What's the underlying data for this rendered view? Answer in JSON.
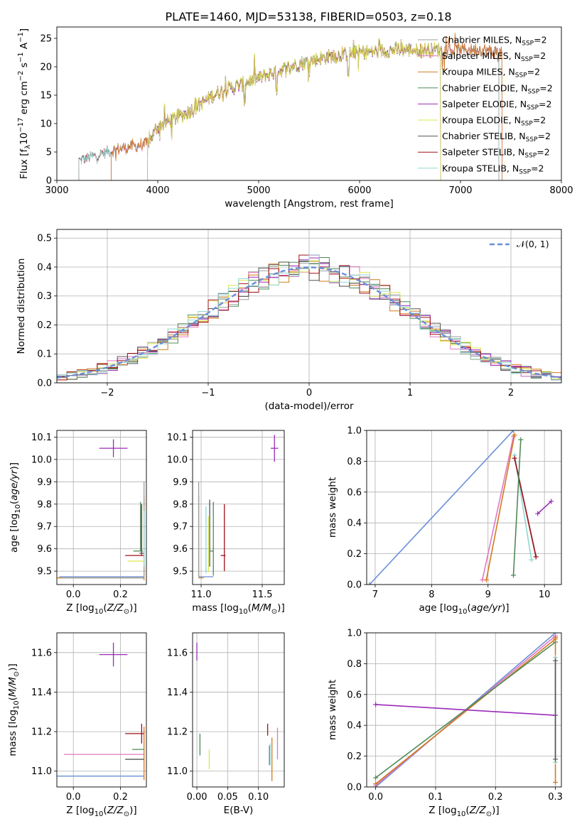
{
  "figure": {
    "title": "PLATE=1460, MJD=53138, FIBERID=0503, z=0.18"
  },
  "colors": {
    "Chabrier MILES": "#9e9e9e",
    "Salpeter MILES": "#e377c2",
    "Kroupa MILES": "#d17a1f",
    "Chabrier ELODIE": "#4f8a58",
    "Salpeter ELODIE": "#9a2bb8",
    "Kroupa ELODIE": "#dce652",
    "Chabrier STELIB": "#555555",
    "Salpeter STELIB": "#a0121d",
    "Kroupa STELIB": "#8fd8d3",
    "normal": "#6a8fd8"
  },
  "chart_data": [
    {
      "id": "spectrum",
      "type": "line",
      "xlabel": "wavelength [Angstrom, rest frame]",
      "ylabel": "Flux [f_λ10^-17 erg cm^-2 s^-1 A^-1]",
      "xlim": [
        3000,
        8000
      ],
      "ylim": [
        0,
        27
      ],
      "xticks": [
        3000,
        4000,
        5000,
        6000,
        7000,
        8000
      ],
      "yticks": [
        0,
        5,
        10,
        15,
        20,
        25
      ],
      "grid": false,
      "legend": "top-right",
      "series": [
        {
          "name": "Chabrier MILES, N_SSP=2",
          "label": "Chabrier MILES, N",
          "sub": "SSP",
          "suffix": "=2",
          "x0": 3540,
          "x1": 7410
        },
        {
          "name": "Salpeter MILES, N_SSP=2",
          "label": "Salpeter MILES, N",
          "sub": "SSP",
          "suffix": "=2",
          "x0": 3540,
          "x1": 7410
        },
        {
          "name": "Kroupa MILES, N_SSP=2",
          "label": "Kroupa MILES, N",
          "sub": "SSP",
          "suffix": "=2",
          "x0": 3540,
          "x1": 7410
        },
        {
          "name": "Chabrier ELODIE, N_SSP=2",
          "label": "Chabrier ELODIE, N",
          "sub": "SSP",
          "suffix": "=2",
          "x0": 3900,
          "x1": 6800
        },
        {
          "name": "Salpeter ELODIE, N_SSP=2",
          "label": "Salpeter ELODIE, N",
          "sub": "SSP",
          "suffix": "=2",
          "x0": 3900,
          "x1": 6800
        },
        {
          "name": "Kroupa ELODIE, N_SSP=2",
          "label": "Kroupa ELODIE, N",
          "sub": "SSP",
          "suffix": "=2",
          "x0": 3900,
          "x1": 6800
        },
        {
          "name": "Chabrier STELIB, N_SSP=2",
          "label": "Chabrier STELIB, N",
          "sub": "SSP",
          "suffix": "=2",
          "x0": 3220,
          "x1": 7380
        },
        {
          "name": "Salpeter STELIB, N_SSP=2",
          "label": "Salpeter STELIB, N",
          "sub": "SSP",
          "suffix": "=2",
          "x0": 3220,
          "x1": 7380
        },
        {
          "name": "Kroupa STELIB, N_SSP=2",
          "label": "Kroupa STELIB, N",
          "sub": "SSP",
          "suffix": "=2",
          "x0": 3220,
          "x1": 7380
        }
      ],
      "continuum": [
        [
          3220,
          3.5
        ],
        [
          3600,
          5.5
        ],
        [
          3900,
          6.5
        ],
        [
          4000,
          9.5
        ],
        [
          4300,
          12
        ],
        [
          4600,
          15.5
        ],
        [
          5000,
          18
        ],
        [
          5300,
          20
        ],
        [
          5600,
          21.5
        ],
        [
          6000,
          22.5
        ],
        [
          6400,
          23
        ],
        [
          6800,
          23
        ],
        [
          7200,
          23
        ],
        [
          7410,
          22.5
        ]
      ]
    },
    {
      "id": "residuals",
      "type": "line",
      "xlabel": "(data-model)/error",
      "ylabel": "Normed distribution",
      "xlim": [
        -2.5,
        2.5
      ],
      "ylim": [
        0,
        0.53
      ],
      "xticks": [
        -2,
        -1,
        0,
        1,
        2
      ],
      "yticks": [
        0.0,
        0.1,
        0.2,
        0.3,
        0.4,
        0.5
      ],
      "grid": true,
      "legend": "top-right",
      "legend_label": "𝒩(0, 1)",
      "normal": {
        "mean": 0,
        "sigma": 1
      },
      "bin_width": 0.1
    },
    {
      "id": "age-vs-Z",
      "type": "scatter",
      "xlabel": "Z [log10(Z/Z⊙)]",
      "ylabel": "age [log10(age/yr)]",
      "xlim": [
        -0.07,
        0.31
      ],
      "ylim": [
        9.44,
        10.13
      ],
      "xticks": [
        0.0,
        0.2
      ],
      "yticks": [
        9.5,
        9.6,
        9.7,
        9.8,
        9.9,
        10.0,
        10.1
      ],
      "grid": true,
      "points": [
        {
          "c": "Salpeter ELODIE",
          "x": 0.17,
          "y": 10.05,
          "xl": 0.06,
          "xh": 0.06,
          "yl": 0.04,
          "yh": 0.04
        },
        {
          "c": "Kroupa MILES",
          "x": 0.3,
          "y": 9.47,
          "xl": 0.37,
          "xh": 0.0,
          "yl": 0.01,
          "yh": 0.37
        },
        {
          "c": "normal",
          "x": 0.3,
          "y": 9.475,
          "xl": 0.36,
          "xh": 0.0,
          "yl": 0.0,
          "yh": 0.0
        },
        {
          "c": "Chabrier MILES",
          "x": 0.3,
          "y": 9.47,
          "xl": 0.35,
          "xh": 0.0,
          "yl": 0.0,
          "yh": 0.43
        },
        {
          "c": "Salpeter STELIB",
          "x": 0.29,
          "y": 9.57,
          "xl": 0.07,
          "xh": 0.01,
          "yl": 0.0,
          "yh": 0.23
        },
        {
          "c": "Chabrier ELODIE",
          "x": 0.285,
          "y": 9.59,
          "xl": 0.03,
          "xh": 0.01,
          "yl": 0.0,
          "yh": 0.22
        },
        {
          "c": "Kroupa ELODIE",
          "x": 0.3,
          "y": 9.545,
          "xl": 0.07,
          "xh": 0.0,
          "yl": 0.0,
          "yh": 0.0
        },
        {
          "c": "Chabrier STELIB",
          "x": 0.29,
          "y": 9.58,
          "xl": 0.01,
          "xh": 0.01,
          "yl": 0.0,
          "yh": 0.22
        },
        {
          "c": "Kroupa STELIB",
          "x": 0.3,
          "y": 9.52,
          "xl": 0.0,
          "xh": 0.0,
          "yl": 0.0,
          "yh": 0.25
        }
      ]
    },
    {
      "id": "age-vs-mass",
      "type": "scatter",
      "xlabel": "mass [log10(M/M⊙)]",
      "ylabel": "",
      "xlim": [
        10.93,
        11.68
      ],
      "ylim": [
        9.44,
        10.13
      ],
      "xticks": [
        11.0,
        11.5
      ],
      "yticks": [
        9.5,
        9.6,
        9.7,
        9.8,
        9.9,
        10.0,
        10.1
      ],
      "grid": true,
      "points": [
        {
          "c": "Salpeter ELODIE",
          "x": 11.6,
          "y": 10.05,
          "xl": 0.03,
          "xh": 0.03,
          "yl": 0.06,
          "yh": 0.06
        },
        {
          "c": "Kroupa MILES",
          "x": 10.98,
          "y": 9.47,
          "xl": 0.0,
          "xh": 0.04,
          "yl": 0.0,
          "yh": 0.37
        },
        {
          "c": "normal",
          "x": 10.98,
          "y": 9.475,
          "xl": 0.0,
          "xh": 0.12,
          "yl": 0.0,
          "yh": 0.0
        },
        {
          "c": "Chabrier MILES",
          "x": 10.98,
          "y": 9.47,
          "xl": 0.0,
          "xh": 0.0,
          "yl": 0.0,
          "yh": 0.43
        },
        {
          "c": "Salpeter STELIB",
          "x": 11.19,
          "y": 9.57,
          "xl": 0.03,
          "xh": 0.01,
          "yl": 0.07,
          "yh": 0.23
        },
        {
          "c": "Chabrier ELODIE",
          "x": 11.1,
          "y": 9.59,
          "xl": 0.03,
          "xh": 0.0,
          "yl": 0.11,
          "yh": 0.22
        },
        {
          "c": "Kroupa ELODIE",
          "x": 11.06,
          "y": 9.545,
          "xl": 0.0,
          "xh": 0.0,
          "yl": 0.05,
          "yh": 0.2
        },
        {
          "c": "Chabrier STELIB",
          "x": 11.07,
          "y": 9.57,
          "xl": 0.0,
          "xh": 0.0,
          "yl": 0.05,
          "yh": 0.25
        },
        {
          "c": "Kroupa STELIB",
          "x": 11.04,
          "y": 9.54,
          "xl": 0.0,
          "xh": 0.0,
          "yl": 0.05,
          "yh": 0.25
        }
      ]
    },
    {
      "id": "mass-weight-vs-age",
      "type": "line",
      "xlabel": "age [log10(age/yr)]",
      "ylabel": "mass weight",
      "xlim": [
        6.85,
        10.3
      ],
      "ylim": [
        0,
        1
      ],
      "xticks": [
        7,
        8,
        9,
        10
      ],
      "yticks": [
        0.0,
        0.2,
        0.4,
        0.6,
        0.8,
        1.0
      ],
      "grid": true,
      "series": [
        {
          "c": "normal",
          "points": [
            [
              6.9,
              0.0
            ],
            [
              9.45,
              1.0
            ]
          ]
        },
        {
          "c": "Salpeter MILES",
          "points": [
            [
              8.9,
              0.03
            ],
            [
              9.45,
              0.96
            ]
          ]
        },
        {
          "c": "Kroupa MILES",
          "points": [
            [
              8.97,
              0.03
            ],
            [
              9.47,
              0.97
            ]
          ]
        },
        {
          "c": "Kroupa STELIB",
          "points": [
            [
              9.47,
              0.84
            ],
            [
              9.77,
              0.16
            ]
          ]
        },
        {
          "c": "Chabrier STELIB",
          "points": [
            [
              9.47,
              0.82
            ],
            [
              9.85,
              0.18
            ]
          ]
        },
        {
          "c": "Salpeter STELIB",
          "points": [
            [
              9.47,
              0.82
            ],
            [
              9.85,
              0.18
            ]
          ]
        },
        {
          "c": "Chabrier ELODIE",
          "points": [
            [
              9.45,
              0.06
            ],
            [
              9.58,
              0.94
            ]
          ]
        },
        {
          "c": "Salpeter ELODIE",
          "points": [
            [
              9.88,
              0.46
            ],
            [
              10.12,
              0.54
            ]
          ]
        }
      ]
    },
    {
      "id": "mass-vs-Z",
      "type": "scatter",
      "xlabel": "Z [log10(Z/Z⊙)]",
      "ylabel": "mass [log10(M/M⊙)]",
      "xlim": [
        -0.07,
        0.31
      ],
      "ylim": [
        10.92,
        11.7
      ],
      "xticks": [
        0.0,
        0.2
      ],
      "yticks": [
        11.0,
        11.2,
        11.4,
        11.6
      ],
      "grid": true,
      "points": [
        {
          "c": "Salpeter ELODIE",
          "x": 0.17,
          "y": 11.59,
          "xl": 0.06,
          "xh": 0.06,
          "yl": 0.06,
          "yh": 0.06
        },
        {
          "c": "Salpeter MILES",
          "x": 0.3,
          "y": 11.085,
          "xl": 0.34,
          "xh": 0.0,
          "yl": 0.0,
          "yh": 0.0
        },
        {
          "c": "normal",
          "x": 0.3,
          "y": 10.975,
          "xl": 0.37,
          "xh": 0.0,
          "yl": 0.0,
          "yh": 0.0
        },
        {
          "c": "Kroupa MILES",
          "x": 0.3,
          "y": 10.985,
          "xl": 0.0,
          "xh": 0.0,
          "yl": 0.03,
          "yh": 0.24
        },
        {
          "c": "Salpeter STELIB",
          "x": 0.29,
          "y": 11.19,
          "xl": 0.07,
          "xh": 0.01,
          "yl": 0.05,
          "yh": 0.05
        },
        {
          "c": "Chabrier ELODIE",
          "x": 0.29,
          "y": 11.11,
          "xl": 0.04,
          "xh": 0.01,
          "yl": 0.0,
          "yh": 0.0
        },
        {
          "c": "Chabrier STELIB",
          "x": 0.29,
          "y": 11.06,
          "xl": 0.07,
          "xh": 0.01,
          "yl": 0.0,
          "yh": 0.0
        },
        {
          "c": "Kroupa STELIB",
          "x": 0.3,
          "y": 11.04,
          "xl": 0.0,
          "xh": 0.0,
          "yl": 0.0,
          "yh": 0.0
        },
        {
          "c": "Kroupa ELODIE",
          "x": 0.3,
          "y": 11.03,
          "xl": 0.0,
          "xh": 0.0,
          "yl": 0.0,
          "yh": 0.0
        }
      ]
    },
    {
      "id": "mass-vs-EBV",
      "type": "scatter",
      "xlabel": "E(B-V)",
      "ylabel": "",
      "xlim": [
        -0.007,
        0.142
      ],
      "ylim": [
        10.92,
        11.7
      ],
      "xticks": [
        0.0,
        0.05,
        0.1
      ],
      "yticks": [
        11.0,
        11.2,
        11.4,
        11.6
      ],
      "grid": true,
      "points": [
        {
          "c": "Salpeter ELODIE",
          "x": 0.0,
          "y": 11.6,
          "xl": 0,
          "xh": 0,
          "yl": 0.04,
          "yh": 0.05
        },
        {
          "c": "Chabrier ELODIE",
          "x": 0.005,
          "y": 11.14,
          "xl": 0,
          "xh": 0,
          "yl": 0.06,
          "yh": 0.05
        },
        {
          "c": "Kroupa ELODIE",
          "x": 0.02,
          "y": 11.05,
          "xl": 0,
          "xh": 0,
          "yl": 0.04,
          "yh": 0.06
        },
        {
          "c": "Salpeter STELIB",
          "x": 0.115,
          "y": 11.21,
          "xl": 0,
          "xh": 0,
          "yl": 0.03,
          "yh": 0.03
        },
        {
          "c": "Chabrier STELIB",
          "x": 0.118,
          "y": 11.07,
          "xl": 0,
          "xh": 0,
          "yl": 0.04,
          "yh": 0.06
        },
        {
          "c": "Kroupa STELIB",
          "x": 0.119,
          "y": 11.08,
          "xl": 0,
          "xh": 0,
          "yl": 0.05,
          "yh": 0.06
        },
        {
          "c": "Kroupa MILES",
          "x": 0.122,
          "y": 11.05,
          "xl": 0,
          "xh": 0,
          "yl": 0.1,
          "yh": 0.12
        },
        {
          "c": "Salpeter MILES",
          "x": 0.131,
          "y": 11.12,
          "xl": 0,
          "xh": 0,
          "yl": 0.06,
          "yh": 0.1
        }
      ]
    },
    {
      "id": "mass-weight-vs-Z",
      "type": "line",
      "xlabel": "Z [log10(Z/Z⊙)]",
      "ylabel": "mass weight",
      "xlim": [
        -0.015,
        0.31
      ],
      "ylim": [
        0,
        1
      ],
      "xticks": [
        0.0,
        0.1,
        0.2,
        0.3
      ],
      "yticks": [
        0.0,
        0.2,
        0.4,
        0.6,
        0.8,
        1.0
      ],
      "grid": true,
      "series": [
        {
          "c": "normal",
          "points": [
            [
              0.0,
              0.0
            ],
            [
              0.3,
              1.0
            ]
          ]
        },
        {
          "c": "Salpeter MILES",
          "points": [
            [
              0.0,
              0.01
            ],
            [
              0.3,
              0.98
            ]
          ]
        },
        {
          "c": "Kroupa MILES",
          "points": [
            [
              0.0,
              0.02
            ],
            [
              0.3,
              0.96
            ]
          ]
        },
        {
          "c": "Chabrier ELODIE",
          "points": [
            [
              0.0,
              0.06
            ],
            [
              0.3,
              0.94
            ]
          ]
        },
        {
          "c": "Salpeter ELODIE",
          "points": [
            [
              0.0,
              0.535
            ],
            [
              0.3,
              0.465
            ]
          ]
        },
        {
          "c": "Kroupa MILES",
          "points": [
            [
              0.3,
              0.03
            ],
            [
              0.3,
              0.97
            ]
          ]
        },
        {
          "c": "Kroupa STELIB",
          "points": [
            [
              0.3,
              0.16
            ],
            [
              0.3,
              0.84
            ]
          ]
        },
        {
          "c": "Chabrier STELIB",
          "points": [
            [
              0.3,
              0.18
            ],
            [
              0.3,
              0.82
            ]
          ]
        }
      ]
    }
  ]
}
